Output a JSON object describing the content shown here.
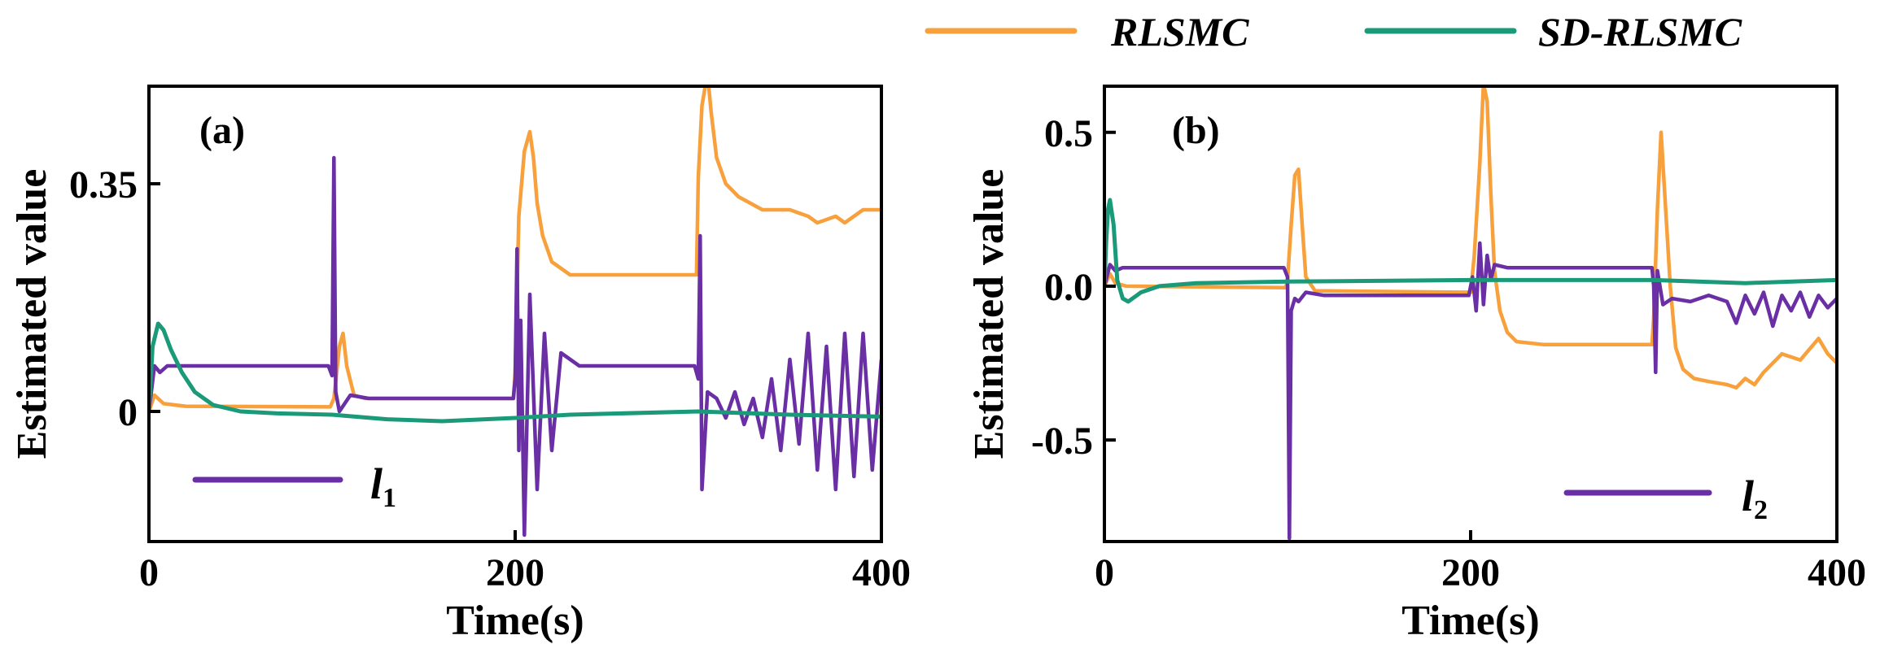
{
  "colors": {
    "rlsmc": "#F7A03C",
    "sd_rlsmc": "#1A9A78",
    "param": "#6A2FA5",
    "axis": "#000000"
  },
  "legend": {
    "rlsmc_label": "RLSMC",
    "sd_rlsmc_label": "SD-RLSMC"
  },
  "chart_data": [
    {
      "type": "line",
      "panel": "(a)",
      "xlabel": "Time(s)",
      "ylabel": "Estimated value",
      "xlim": [
        0,
        400
      ],
      "ylim": [
        -0.2,
        0.5
      ],
      "xticks": [
        0,
        200,
        400
      ],
      "yticks": [
        0,
        0.35
      ],
      "ytick_labels": [
        "0",
        "0.35"
      ],
      "param_label": "l",
      "param_sub": "1",
      "series": [
        {
          "name": "RLSMC",
          "x": [
            0,
            3,
            8,
            20,
            99,
            101,
            104,
            106,
            108,
            112,
            118,
            199,
            200,
            202,
            205,
            208,
            210,
            212,
            215,
            220,
            230,
            299,
            300,
            302,
            305,
            307,
            310,
            315,
            322,
            335,
            350,
            360,
            365,
            375,
            380,
            390,
            400
          ],
          "values": [
            0.0,
            0.025,
            0.012,
            0.008,
            0.007,
            0.02,
            0.1,
            0.12,
            0.07,
            0.025,
            0.02,
            0.02,
            0.06,
            0.3,
            0.4,
            0.43,
            0.39,
            0.32,
            0.27,
            0.23,
            0.21,
            0.21,
            0.36,
            0.47,
            0.52,
            0.46,
            0.39,
            0.35,
            0.33,
            0.31,
            0.31,
            0.3,
            0.29,
            0.3,
            0.29,
            0.31,
            0.31
          ]
        },
        {
          "name": "SD-RLSMC",
          "x": [
            0,
            2,
            5,
            8,
            12,
            18,
            25,
            35,
            50,
            70,
            100,
            130,
            160,
            200,
            230,
            300,
            350,
            400
          ],
          "values": [
            0.0,
            0.1,
            0.135,
            0.125,
            0.095,
            0.06,
            0.03,
            0.01,
            0.0,
            -0.003,
            -0.005,
            -0.012,
            -0.015,
            -0.01,
            -0.005,
            0.0,
            -0.005,
            -0.008
          ]
        },
        {
          "name": "l1",
          "x": [
            0,
            3,
            6,
            10,
            98,
            100,
            101,
            102,
            104,
            110,
            120,
            150,
            199,
            200,
            201,
            202,
            203,
            205,
            208,
            212,
            216,
            220,
            225,
            235,
            298,
            300,
            301,
            302,
            305,
            310,
            315,
            320,
            325,
            330,
            335,
            340,
            345,
            350,
            355,
            360,
            365,
            370,
            375,
            380,
            385,
            390,
            395,
            400
          ],
          "values": [
            0.0,
            0.07,
            0.06,
            0.07,
            0.07,
            0.055,
            0.39,
            0.03,
            0.0,
            0.025,
            0.02,
            0.02,
            0.02,
            0.05,
            0.25,
            -0.06,
            0.14,
            -0.19,
            0.18,
            -0.12,
            0.12,
            -0.06,
            0.09,
            0.07,
            0.07,
            0.05,
            0.27,
            -0.12,
            0.03,
            0.02,
            -0.01,
            0.03,
            -0.02,
            0.02,
            -0.04,
            0.05,
            -0.06,
            0.08,
            -0.05,
            0.12,
            -0.09,
            0.1,
            -0.12,
            0.12,
            -0.1,
            0.12,
            -0.09,
            0.08
          ]
        }
      ]
    },
    {
      "type": "line",
      "panel": "(b)",
      "xlabel": "Time(s)",
      "ylabel": "Estimated value",
      "xlim": [
        0,
        400
      ],
      "ylim": [
        -0.83,
        0.65
      ],
      "xticks": [
        0,
        200,
        400
      ],
      "yticks": [
        0.5,
        0.0,
        -0.5
      ],
      "ytick_labels": [
        "0.5",
        "0.0",
        "-0.5"
      ],
      "param_label": "l",
      "param_sub": "2",
      "series": [
        {
          "name": "RLSMC",
          "x": [
            0,
            3,
            6,
            12,
            99,
            100,
            102,
            104,
            106,
            108,
            110,
            115,
            200,
            202,
            205,
            207,
            209,
            211,
            213,
            216,
            220,
            225,
            240,
            299,
            300,
            302,
            304,
            306,
            309,
            312,
            316,
            322,
            330,
            340,
            345,
            350,
            355,
            360,
            370,
            380,
            390,
            395,
            400
          ],
          "values": [
            0.0,
            0.04,
            0.01,
            0.0,
            -0.005,
            0.02,
            0.2,
            0.36,
            0.38,
            0.2,
            0.03,
            -0.015,
            -0.02,
            0.1,
            0.4,
            0.66,
            0.6,
            0.3,
            0.05,
            -0.08,
            -0.15,
            -0.18,
            -0.19,
            -0.19,
            -0.1,
            0.25,
            0.5,
            0.3,
            0.0,
            -0.2,
            -0.27,
            -0.3,
            -0.31,
            -0.32,
            -0.33,
            -0.3,
            -0.32,
            -0.28,
            -0.22,
            -0.24,
            -0.17,
            -0.22,
            -0.25
          ]
        },
        {
          "name": "SD-RLSMC",
          "x": [
            0,
            1,
            2,
            3,
            5,
            7,
            10,
            13,
            20,
            30,
            50,
            100,
            200,
            300,
            350,
            400
          ],
          "values": [
            0.0,
            0.15,
            0.25,
            0.28,
            0.2,
            0.02,
            -0.04,
            -0.05,
            -0.02,
            0.0,
            0.01,
            0.015,
            0.02,
            0.02,
            0.01,
            0.02
          ]
        },
        {
          "name": "l2",
          "x": [
            0,
            3,
            6,
            10,
            98,
            100,
            101,
            102,
            104,
            106,
            110,
            120,
            199,
            201,
            203,
            205,
            207,
            209,
            211,
            213,
            220,
            299,
            300,
            301,
            302,
            305,
            310,
            320,
            330,
            340,
            345,
            350,
            355,
            360,
            365,
            370,
            375,
            380,
            385,
            390,
            395,
            400
          ],
          "values": [
            0.0,
            0.07,
            0.05,
            0.06,
            0.06,
            0.03,
            -0.82,
            -0.08,
            -0.04,
            -0.05,
            -0.02,
            -0.03,
            -0.03,
            0.03,
            -0.08,
            0.14,
            -0.06,
            0.1,
            0.02,
            0.07,
            0.06,
            0.06,
            0.0,
            -0.28,
            0.05,
            -0.06,
            -0.04,
            -0.05,
            -0.03,
            -0.05,
            -0.12,
            -0.03,
            -0.09,
            -0.02,
            -0.13,
            -0.03,
            -0.08,
            -0.02,
            -0.1,
            -0.03,
            -0.07,
            -0.04
          ]
        }
      ]
    }
  ]
}
